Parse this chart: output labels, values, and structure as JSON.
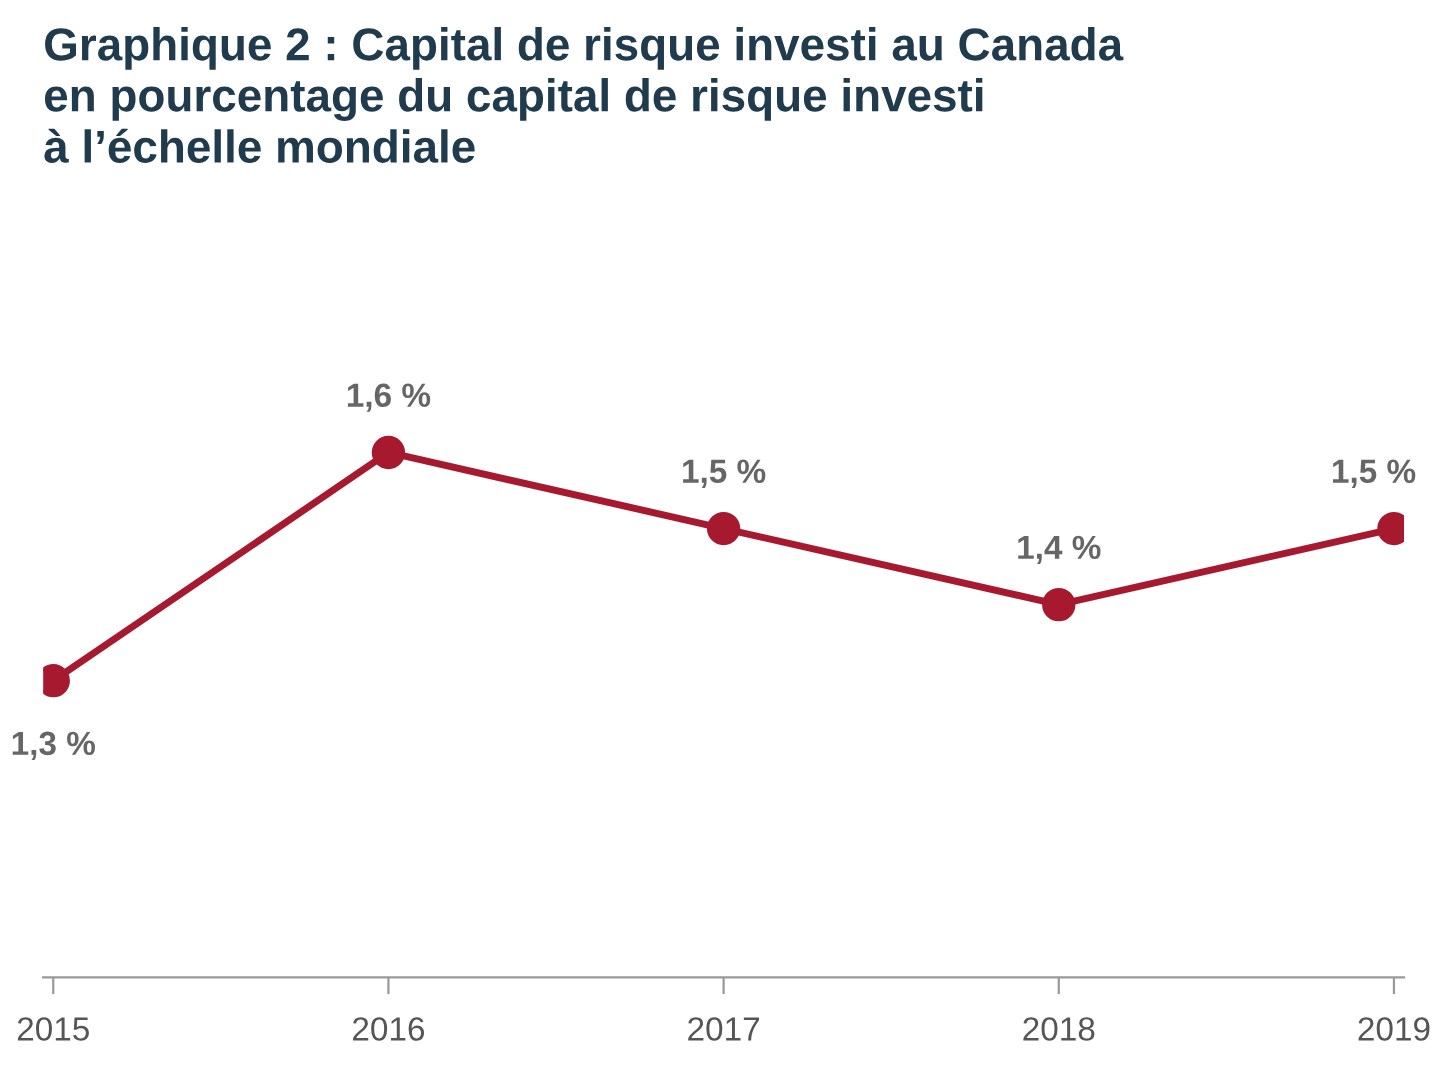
{
  "chart_data": {
    "type": "line",
    "title": "Graphique 2 : Capital de risque investi au Canada\nen pourcentage du capital de risque investi\nà l’échelle mondiale",
    "categories": [
      "2015",
      "2016",
      "2017",
      "2018",
      "2019"
    ],
    "series": [
      {
        "color": "#a6192e",
        "values": [
          1.3,
          1.6,
          1.5,
          1.4,
          1.5
        ],
        "value_labels": [
          "1,3 %",
          "1,6 %",
          "1,5 %",
          "1,4 %",
          "1,5 %"
        ]
      }
    ],
    "marker": "circle",
    "line_style": "solid",
    "grid": false,
    "legend": false
  }
}
